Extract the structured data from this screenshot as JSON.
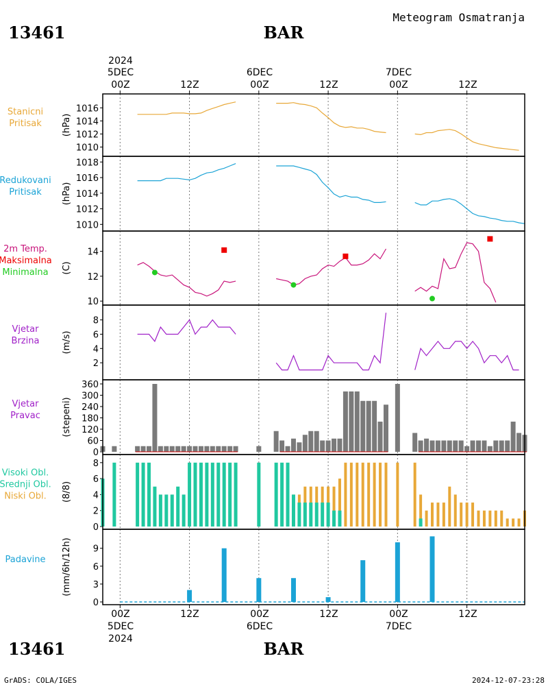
{
  "header": {
    "station_id": "13461",
    "station_name": "BAR",
    "title": "Meteogram Osmatranja"
  },
  "footer": {
    "credit": "GrADS: COLA/IGES",
    "timestamp": "2024-12-07-23:28"
  },
  "time_axis": {
    "top_year": "2024",
    "top_dates": [
      "5DEC",
      "6DEC",
      "7DEC"
    ],
    "bottom_dates": [
      "5DEC",
      "6DEC",
      "7DEC"
    ],
    "bottom_year": "2024",
    "tick_labels": [
      "00Z",
      "12Z",
      "00Z",
      "12Z",
      "00Z",
      "12Z"
    ],
    "range_hours": [
      -3,
      70
    ]
  },
  "colors": {
    "station_pressure": "#e8a838",
    "reduced_pressure": "#1ba3d6",
    "temperature": "#c8137a",
    "tmax": "#ee0000",
    "tmin": "#22cc22",
    "wind": "#a020c8",
    "wind_direction": "#7a7a7a",
    "high_cloud": "#20c8a0",
    "low_cloud": "#e8a838",
    "precip": "#1ba3d6"
  },
  "chart_data": [
    {
      "type": "line",
      "id": "stanicni",
      "labels": [
        "Stanicni",
        "Pritisak"
      ],
      "ylabel": "(hPa)",
      "yticks": [
        "1016",
        "1014",
        "1012",
        "1010"
      ],
      "ylim": [
        1009.0,
        1017.5
      ],
      "segments": [
        {
          "x": [
            3,
            6,
            7,
            8,
            9,
            10,
            11,
            12,
            13,
            14,
            15,
            16,
            17,
            18,
            19,
            20
          ],
          "y": [
            1015,
            1015,
            1015,
            1015,
            1015.2,
            1015.2,
            1015.2,
            1015.1,
            1015.1,
            1015.2,
            1015.6,
            1015.9,
            1016.2,
            1016.5,
            1016.7,
            1016.9
          ]
        },
        {
          "x": [
            27,
            29,
            30,
            31,
            32,
            33,
            34,
            35,
            36,
            37,
            38,
            39,
            40,
            41,
            42,
            43,
            44,
            45,
            46
          ],
          "y": [
            1016.7,
            1016.7,
            1016.8,
            1016.6,
            1016.5,
            1016.3,
            1016.0,
            1015.2,
            1014.5,
            1013.7,
            1013.2,
            1013.0,
            1013.1,
            1012.9,
            1012.9,
            1012.7,
            1012.4,
            1012.3,
            1012.2
          ]
        },
        {
          "x": [
            51,
            52,
            53,
            54,
            55,
            56,
            57,
            58,
            59,
            60,
            61,
            62,
            63,
            64,
            65,
            66,
            67,
            68,
            69
          ],
          "y": [
            1012.0,
            1011.9,
            1012.2,
            1012.2,
            1012.5,
            1012.6,
            1012.7,
            1012.5,
            1012.0,
            1011.4,
            1010.8,
            1010.5,
            1010.3,
            1010.1,
            1009.9,
            1009.8,
            1009.7,
            1009.6,
            1009.5
          ]
        }
      ]
    },
    {
      "type": "line",
      "id": "redukovani",
      "labels": [
        "Redukovani",
        "Pritisak"
      ],
      "ylabel": "(hPa)",
      "yticks": [
        "1018",
        "1016",
        "1014",
        "1012",
        "1010"
      ],
      "ylim": [
        1009.5,
        1018.2
      ],
      "segments": [
        {
          "x": [
            3,
            6,
            7,
            8,
            9,
            10,
            11,
            12,
            13,
            14,
            15,
            16,
            17,
            18,
            19,
            20
          ],
          "y": [
            1015.6,
            1015.6,
            1015.6,
            1015.9,
            1015.9,
            1015.9,
            1015.8,
            1015.7,
            1015.9,
            1016.3,
            1016.6,
            1016.7,
            1017.0,
            1017.2,
            1017.5,
            1017.8
          ]
        },
        {
          "x": [
            27,
            29,
            30,
            31,
            32,
            33,
            34,
            35,
            36,
            37,
            38,
            39,
            40,
            41,
            42,
            43,
            44,
            45,
            46
          ],
          "y": [
            1017.5,
            1017.5,
            1017.5,
            1017.3,
            1017.1,
            1016.9,
            1016.4,
            1015.4,
            1014.7,
            1013.9,
            1013.5,
            1013.7,
            1013.5,
            1013.5,
            1013.2,
            1013.1,
            1012.8,
            1012.8,
            1012.9
          ]
        },
        {
          "x": [
            51,
            52,
            53,
            54,
            55,
            56,
            57,
            58,
            59,
            60,
            61,
            62,
            63,
            64,
            65,
            66,
            67,
            68,
            69,
            70
          ],
          "y": [
            1012.8,
            1012.5,
            1012.5,
            1013.0,
            1013.0,
            1013.2,
            1013.3,
            1013.1,
            1012.6,
            1012.0,
            1011.4,
            1011.1,
            1011.0,
            1010.8,
            1010.7,
            1010.5,
            1010.4,
            1010.4,
            1010.2,
            1010.1
          ]
        }
      ]
    },
    {
      "type": "line",
      "id": "temperatura",
      "labels": [
        "2m Temp.",
        "Maksimalna",
        "Minimalna"
      ],
      "ylabel": "(C)",
      "yticks": [
        "14",
        "12",
        "10"
      ],
      "ylim": [
        9.9,
        15.3
      ],
      "segments": [
        {
          "x": [
            3,
            4,
            5,
            6,
            7,
            8,
            9,
            10,
            11,
            12,
            13,
            14,
            15,
            16,
            17,
            18,
            19,
            20
          ],
          "y": [
            12.9,
            13.1,
            12.8,
            12.4,
            12.1,
            12.0,
            12.1,
            11.7,
            11.3,
            11.1,
            10.7,
            10.6,
            10.4,
            10.6,
            10.9,
            11.6,
            11.5,
            11.6
          ]
        },
        {
          "x": [
            27,
            28,
            29,
            30,
            31,
            32,
            33,
            34,
            35,
            36,
            37,
            38,
            39,
            40,
            41,
            42,
            43,
            44,
            45,
            46
          ],
          "y": [
            11.8,
            11.7,
            11.6,
            11.3,
            11.4,
            11.8,
            12.0,
            12.1,
            12.6,
            12.9,
            12.8,
            13.2,
            13.5,
            12.9,
            12.9,
            13.0,
            13.3,
            13.8,
            13.4,
            14.2
          ]
        },
        {
          "x": [
            51,
            52,
            53,
            54,
            55,
            56,
            57,
            58,
            59,
            60,
            61,
            62,
            63,
            64,
            65
          ],
          "y": [
            10.8,
            11.1,
            10.8,
            11.2,
            11.0,
            13.4,
            12.6,
            12.7,
            13.8,
            14.7,
            14.6,
            14.0,
            11.5,
            11.0,
            9.9
          ]
        }
      ],
      "markers": {
        "maksimalna": {
          "x": [
            18,
            39,
            64
          ],
          "y": [
            14.1,
            13.6,
            15.0
          ]
        },
        "minimalna": {
          "x": [
            6,
            30,
            54
          ],
          "y": [
            12.3,
            11.3,
            10.2
          ]
        }
      }
    },
    {
      "type": "line",
      "id": "vjetar_brzina",
      "labels": [
        "Vjetar",
        "Brzina"
      ],
      "ylabel": "(m/s)",
      "yticks": [
        "8",
        "6",
        "4",
        "2"
      ],
      "ylim": [
        0,
        9.5
      ],
      "segments": [
        {
          "x": [
            3,
            4,
            5,
            6,
            7,
            8,
            9,
            10,
            11,
            12,
            13,
            14,
            15,
            16,
            17,
            18,
            19,
            20
          ],
          "y": [
            6,
            6,
            6,
            5,
            7,
            6,
            6,
            6,
            7,
            8,
            6,
            7,
            7,
            8,
            7,
            7,
            7,
            6
          ]
        },
        {
          "x": [
            27,
            28,
            29,
            30,
            31,
            32,
            33,
            34,
            35,
            36,
            37,
            38,
            39,
            40,
            41,
            42,
            43,
            44,
            45,
            46
          ],
          "y": [
            2,
            1,
            1,
            3,
            1,
            1,
            1,
            1,
            1,
            3,
            2,
            2,
            2,
            2,
            2,
            1,
            1,
            3,
            2,
            9
          ]
        },
        {
          "x": [
            51,
            52,
            53,
            54,
            55,
            56,
            57,
            58,
            59,
            60,
            61,
            62,
            63,
            64,
            65,
            66,
            67,
            68,
            69
          ],
          "y": [
            1,
            4,
            3,
            4,
            5,
            4,
            4,
            5,
            5,
            4,
            5,
            4,
            2,
            3,
            3,
            2,
            3,
            1,
            1
          ]
        }
      ]
    },
    {
      "type": "bar",
      "id": "vjetar_pravac",
      "labels": [
        "Vjetar",
        "Pravac"
      ],
      "ylabel": "(stepeni)",
      "yticks": [
        "360",
        "300",
        "240",
        "180",
        "120",
        "60",
        "0"
      ],
      "ylim": [
        0,
        360
      ],
      "x": [
        -3,
        -1,
        3,
        4,
        5,
        6,
        7,
        8,
        9,
        10,
        11,
        12,
        13,
        14,
        15,
        16,
        17,
        18,
        19,
        20,
        24,
        27,
        28,
        29,
        30,
        31,
        32,
        33,
        34,
        35,
        36,
        37,
        38,
        39,
        40,
        41,
        42,
        43,
        44,
        45,
        46,
        48,
        51,
        52,
        53,
        54,
        55,
        56,
        57,
        58,
        59,
        60,
        61,
        62,
        63,
        64,
        65,
        66,
        67,
        68,
        69,
        70
      ],
      "values": [
        30,
        30,
        30,
        30,
        30,
        360,
        30,
        30,
        30,
        30,
        30,
        30,
        30,
        30,
        30,
        30,
        30,
        30,
        30,
        30,
        30,
        110,
        60,
        30,
        70,
        50,
        90,
        110,
        110,
        60,
        60,
        70,
        70,
        320,
        320,
        320,
        270,
        270,
        270,
        160,
        250,
        360,
        100,
        60,
        70,
        60,
        60,
        60,
        60,
        60,
        60,
        30,
        60,
        60,
        60,
        30,
        60,
        60,
        60,
        160,
        100,
        90
      ]
    },
    {
      "type": "bar",
      "id": "oblaci",
      "labels": [
        "Visoki Obl.",
        "Srednji Obl.",
        "Niski Obl."
      ],
      "ylabel": "(8/8)",
      "yticks": [
        "8",
        "6",
        "4",
        "2",
        "0"
      ],
      "ylim": [
        0,
        8.5
      ],
      "series": [
        {
          "name": "Visoki Obl.",
          "x": [
            -3,
            -1,
            3,
            4,
            5,
            6,
            7,
            8,
            9,
            10,
            11,
            12,
            13,
            14,
            15,
            16,
            17,
            18,
            19,
            20,
            24,
            27,
            28,
            29,
            30,
            31,
            32,
            33,
            34,
            35,
            36,
            37,
            38,
            39,
            40,
            41,
            42,
            43,
            44,
            45,
            46,
            48,
            51,
            52,
            53,
            54,
            55,
            56,
            57,
            58,
            59,
            60,
            61,
            62,
            63,
            64,
            65,
            66,
            67,
            68,
            69,
            70
          ],
          "values": [
            6,
            8,
            8,
            8,
            8,
            5,
            4,
            4,
            4,
            5,
            4,
            8,
            8,
            8,
            8,
            8,
            8,
            8,
            8,
            8,
            8,
            8,
            8,
            8,
            4,
            3,
            3,
            3,
            3,
            3,
            3,
            2,
            2,
            0,
            0,
            0,
            0,
            0,
            0,
            0,
            0,
            0,
            0,
            1,
            0,
            0,
            0,
            0,
            0,
            0,
            0,
            0,
            0,
            0,
            0,
            0,
            0,
            0,
            0,
            0,
            0,
            0
          ]
        },
        {
          "name": "Niski Obl.",
          "x": [
            -3,
            -1,
            3,
            4,
            5,
            6,
            7,
            8,
            9,
            10,
            11,
            12,
            13,
            14,
            15,
            16,
            17,
            18,
            19,
            20,
            24,
            27,
            28,
            29,
            30,
            31,
            32,
            33,
            34,
            35,
            36,
            37,
            38,
            39,
            40,
            41,
            42,
            43,
            44,
            45,
            46,
            48,
            51,
            52,
            53,
            54,
            55,
            56,
            57,
            58,
            59,
            60,
            61,
            62,
            63,
            64,
            65,
            66,
            67,
            68,
            69,
            70
          ],
          "values": [
            0,
            0,
            0,
            0,
            0,
            0,
            0,
            0,
            0,
            0,
            0,
            0,
            0,
            0,
            0,
            0,
            0,
            0,
            0,
            0,
            0,
            0,
            0,
            0,
            4,
            4,
            5,
            5,
            5,
            5,
            5,
            5,
            6,
            8,
            8,
            8,
            8,
            8,
            8,
            8,
            8,
            8,
            8,
            4,
            2,
            3,
            3,
            3,
            5,
            4,
            3,
            3,
            3,
            2,
            2,
            2,
            2,
            2,
            1,
            1,
            1,
            2
          ]
        }
      ]
    },
    {
      "type": "bar",
      "id": "padavine",
      "labels": [
        "Padavine"
      ],
      "ylabel": "(mm/6h/12h)",
      "yticks": [
        "9",
        "6",
        "3",
        "0"
      ],
      "ylim": [
        0,
        11.5
      ],
      "x": [
        -3,
        -1,
        12,
        18,
        24,
        30,
        36,
        42,
        48,
        54
      ],
      "values": [
        0,
        0,
        2,
        9,
        4,
        4,
        0.8,
        7,
        10,
        11
      ]
    }
  ]
}
